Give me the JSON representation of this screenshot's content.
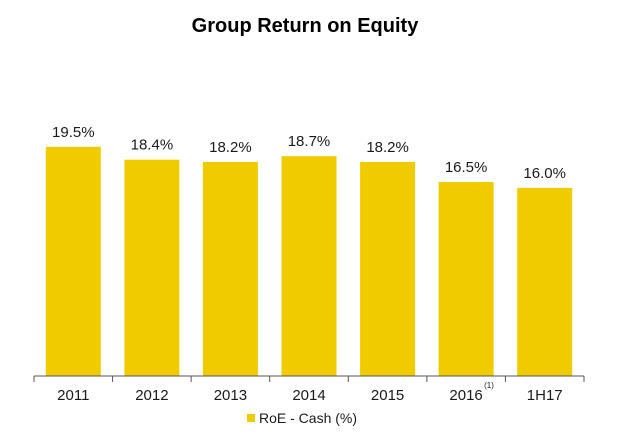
{
  "colors": {
    "bar": "#EFCB00",
    "axis": "#555555"
  },
  "chart_data": {
    "type": "bar",
    "title": "Group Return on Equity",
    "categories": [
      "2011",
      "2012",
      "2013",
      "2014",
      "2015",
      "2016",
      "1H17"
    ],
    "category_footnotes": [
      "",
      "",
      "",
      "",
      "",
      "(1)",
      ""
    ],
    "series": [
      {
        "name": "RoE - Cash (%)",
        "values": [
          19.5,
          18.4,
          18.2,
          18.7,
          18.2,
          16.5,
          16.0
        ],
        "labels": [
          "19.5%",
          "18.4%",
          "18.2%",
          "18.7%",
          "18.2%",
          "16.5%",
          "16.0%"
        ]
      }
    ],
    "ylim": [
      0,
      20.5
    ],
    "grid": false,
    "legend_position": "bottom"
  }
}
